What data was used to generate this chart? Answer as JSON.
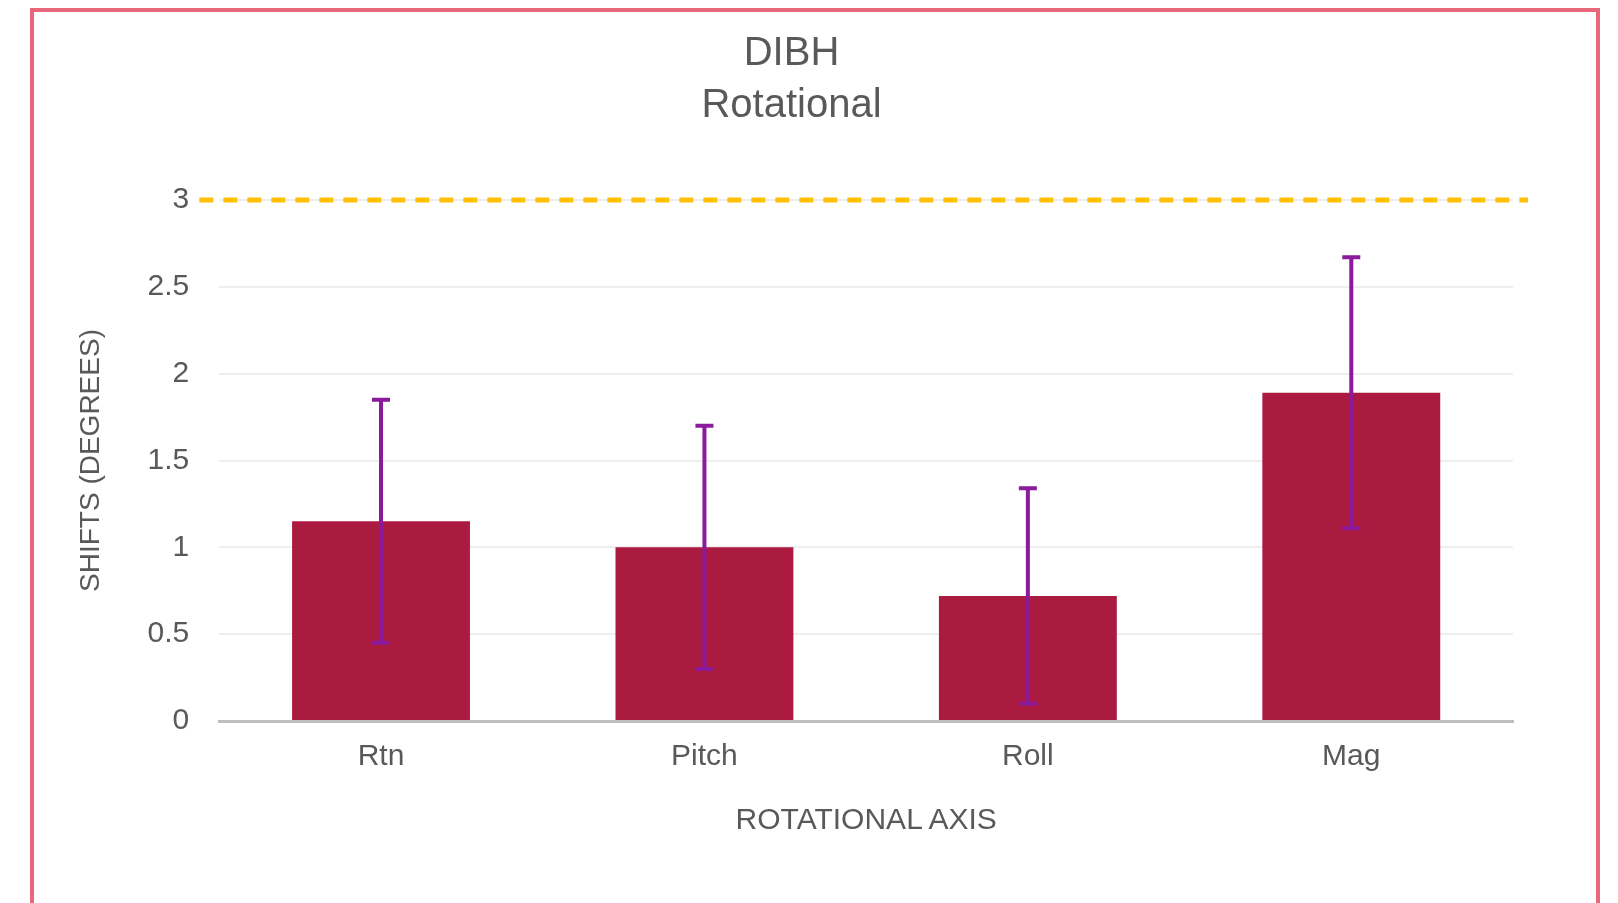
{
  "chart_data": {
    "type": "bar",
    "title": "DIBH",
    "subtitle": "Rotational",
    "xlabel": "ROTATIONAL AXIS",
    "ylabel": "SHIFTS (DEGREES)",
    "categories": [
      "Rtn",
      "Pitch",
      "Roll",
      "Mag"
    ],
    "values": [
      1.15,
      1.0,
      0.72,
      1.89
    ],
    "errors": [
      0.7,
      0.7,
      0.62,
      0.78
    ],
    "color": "#ab1a3f",
    "ylim": [
      0,
      3
    ],
    "yticks": [
      0,
      0.5,
      1,
      1.5,
      2,
      2.5,
      3
    ],
    "grid": "y",
    "legend": false,
    "ref_lines": [
      {
        "axis": "y",
        "value": 3,
        "color": "#ffc000",
        "line_style": "dashed"
      }
    ]
  }
}
